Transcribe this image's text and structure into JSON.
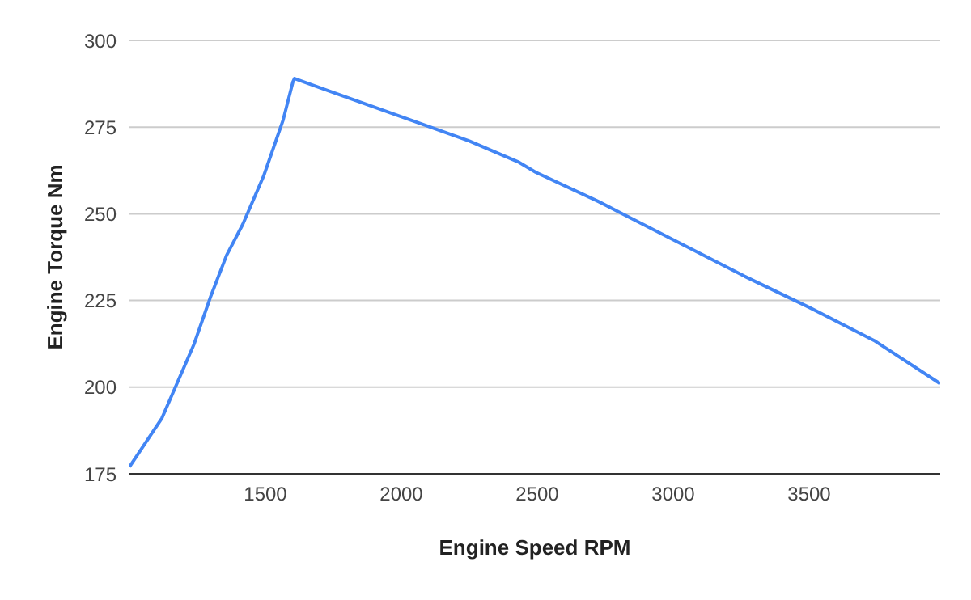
{
  "chart_data": {
    "type": "line",
    "xlabel": "Engine Speed RPM",
    "ylabel": "Engine Torque Nm",
    "x": [
      1000,
      1119,
      1238,
      1298,
      1357,
      1417,
      1494,
      1565,
      1601,
      1607,
      1714,
      2000,
      2250,
      2429,
      2494,
      2726,
      3000,
      3262,
      3500,
      3738,
      3982
    ],
    "series": [
      {
        "color": "#4285f4",
        "values": [
          177,
          191,
          212.5,
          226,
          238,
          247,
          261,
          277,
          288,
          289,
          286,
          278,
          271,
          265,
          262,
          253.5,
          242.5,
          232,
          223,
          213.5,
          201
        ]
      }
    ],
    "xlim": [
      1000,
      3982
    ],
    "xticks": [
      1500,
      2000,
      2500,
      3000,
      3500
    ],
    "ylim": [
      175,
      300
    ],
    "yticks": [
      175,
      200,
      225,
      250,
      275,
      300
    ],
    "grid": "y",
    "marker": "none",
    "line_style": "solid"
  }
}
